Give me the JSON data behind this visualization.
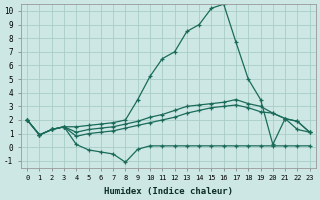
{
  "xlabel": "Humidex (Indice chaleur)",
  "xlim": [
    -0.5,
    23.5
  ],
  "ylim": [
    -1.5,
    10.5
  ],
  "xticks": [
    0,
    1,
    2,
    3,
    4,
    5,
    6,
    7,
    8,
    9,
    10,
    11,
    12,
    13,
    14,
    15,
    16,
    17,
    18,
    19,
    20,
    21,
    22,
    23
  ],
  "yticks": [
    -1,
    0,
    1,
    2,
    3,
    4,
    5,
    6,
    7,
    8,
    9,
    10
  ],
  "bg_color": "#cde8e4",
  "grid_color": "#a8cdc8",
  "line_color": "#1a6b5a",
  "series": [
    [
      2.0,
      0.9,
      1.3,
      1.5,
      0.2,
      -0.2,
      -0.35,
      -0.5,
      -1.1,
      -0.15,
      0.1,
      0.1,
      0.1,
      0.1,
      0.1,
      0.1,
      0.1,
      0.1,
      0.1,
      0.1,
      0.1,
      0.1,
      0.1,
      0.1
    ],
    [
      2.0,
      0.9,
      1.3,
      1.5,
      0.8,
      1.0,
      1.1,
      1.2,
      1.4,
      1.6,
      1.8,
      2.0,
      2.2,
      2.5,
      2.7,
      2.9,
      3.0,
      3.1,
      2.9,
      2.6,
      2.5,
      2.1,
      1.9,
      1.1
    ],
    [
      2.0,
      0.9,
      1.3,
      1.5,
      1.1,
      1.3,
      1.4,
      1.5,
      1.7,
      1.9,
      2.2,
      2.4,
      2.7,
      3.0,
      3.1,
      3.2,
      3.3,
      3.5,
      3.2,
      3.0,
      2.5,
      2.1,
      1.9,
      1.1
    ],
    [
      2.0,
      0.9,
      1.3,
      1.5,
      1.5,
      1.6,
      1.7,
      1.8,
      2.0,
      3.5,
      5.2,
      6.5,
      7.0,
      8.5,
      9.0,
      10.2,
      10.5,
      7.7,
      5.0,
      3.5,
      0.2,
      2.1,
      1.3,
      1.1
    ]
  ],
  "marker": "+",
  "markersize": 3,
  "linewidth": 0.9
}
